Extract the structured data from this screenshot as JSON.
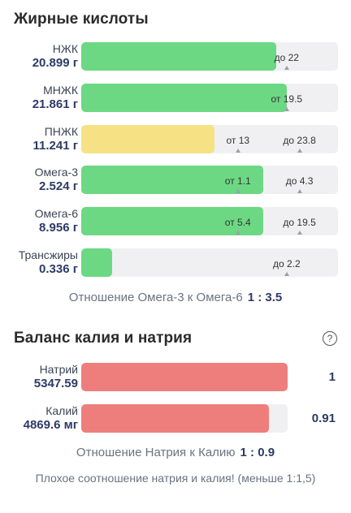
{
  "fatty_acids": {
    "title": "Жирные кислоты",
    "rows": [
      {
        "name": "НЖК",
        "value": "20.899 г",
        "fill_percent": 76,
        "color": "green",
        "marks": [
          {
            "text": "до 22",
            "pos_percent": 80
          }
        ]
      },
      {
        "name": "МНЖК",
        "value": "21.861 г",
        "fill_percent": 80,
        "color": "green",
        "marks": [
          {
            "text": "от 19.5",
            "pos_percent": 80
          }
        ]
      },
      {
        "name": "ПНЖК",
        "value": "11.241 г",
        "fill_percent": 52,
        "color": "yellow",
        "marks": [
          {
            "text": "от 13",
            "pos_percent": 61
          },
          {
            "text": "до 23.8",
            "pos_percent": 85
          }
        ]
      },
      {
        "name": "Омега-3",
        "value": "2.524 г",
        "fill_percent": 71,
        "color": "green",
        "marks": [
          {
            "text": "от 1.1",
            "pos_percent": 61
          },
          {
            "text": "до 4.3",
            "pos_percent": 85
          }
        ]
      },
      {
        "name": "Омега-6",
        "value": "8.956 г",
        "fill_percent": 71,
        "color": "green",
        "marks": [
          {
            "text": "от 5.4",
            "pos_percent": 61
          },
          {
            "text": "до 19.5",
            "pos_percent": 85
          }
        ]
      },
      {
        "name": "Трансжиры",
        "value": "0.336 г",
        "fill_percent": 12,
        "color": "green",
        "marks": [
          {
            "text": "до 2.2",
            "pos_percent": 80
          }
        ]
      }
    ],
    "ratio_label": "Отношение Омега-3 к Омега-6",
    "ratio_value": "1 : 3.5"
  },
  "potassium_sodium": {
    "title": "Баланс калия и натрия",
    "help_icon": "?",
    "rows": [
      {
        "name": "Натрий",
        "value": "5347.59",
        "fill_percent": 100,
        "color": "red",
        "right": "1"
      },
      {
        "name": "Калий",
        "value": "4869.6 мг",
        "fill_percent": 91,
        "color": "red",
        "right": "0.91"
      }
    ],
    "ratio_label": "Отношение Натрия к Калию",
    "ratio_value": "1 : 0.9",
    "warning": "Плохое соотношение натрия и калия! (меньше 1:1,5)"
  }
}
